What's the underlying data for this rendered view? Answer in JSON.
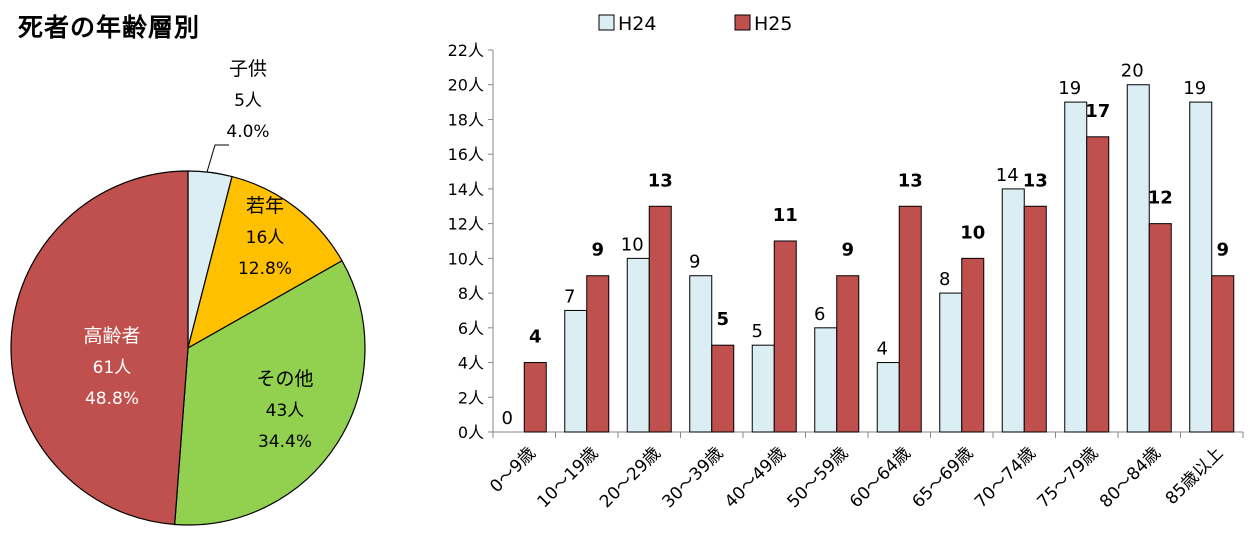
{
  "page_title": "死者の年齢層別",
  "chart_data": [
    {
      "type": "pie",
      "slices": [
        {
          "label": "子供",
          "count": "5人",
          "percent": "4.0%",
          "value": 4.0,
          "color": "#DAEEF3"
        },
        {
          "label": "若年",
          "count": "16人",
          "percent": "12.8%",
          "value": 12.8,
          "color": "#FFC000"
        },
        {
          "label": "その他",
          "count": "43人",
          "percent": "34.4%",
          "value": 34.4,
          "color": "#92D050"
        },
        {
          "label": "高齢者",
          "count": "61人",
          "percent": "48.8%",
          "value": 48.8,
          "color": "#C0504D"
        }
      ]
    },
    {
      "type": "bar",
      "categories": [
        "0～9歳",
        "10～19歳",
        "20～29歳",
        "30～39歳",
        "40～49歳",
        "50～59歳",
        "60～64歳",
        "65～69歳",
        "70～74歳",
        "75～79歳",
        "80～84歳",
        "85歳以上"
      ],
      "series": [
        {
          "name": "H24",
          "values": [
            0,
            7,
            10,
            9,
            5,
            6,
            4,
            8,
            14,
            19,
            20,
            19
          ],
          "color": "#DAEEF3"
        },
        {
          "name": "H25",
          "values": [
            4,
            9,
            13,
            5,
            11,
            9,
            13,
            10,
            13,
            17,
            12,
            9
          ],
          "color": "#C0504D"
        }
      ],
      "ylim": [
        0,
        22
      ],
      "y_ticks": [
        "0人",
        "2人",
        "4人",
        "6人",
        "8人",
        "10人",
        "12人",
        "14人",
        "16人",
        "18人",
        "20人",
        "22人"
      ],
      "legend_position": "top",
      "grid": false
    }
  ]
}
